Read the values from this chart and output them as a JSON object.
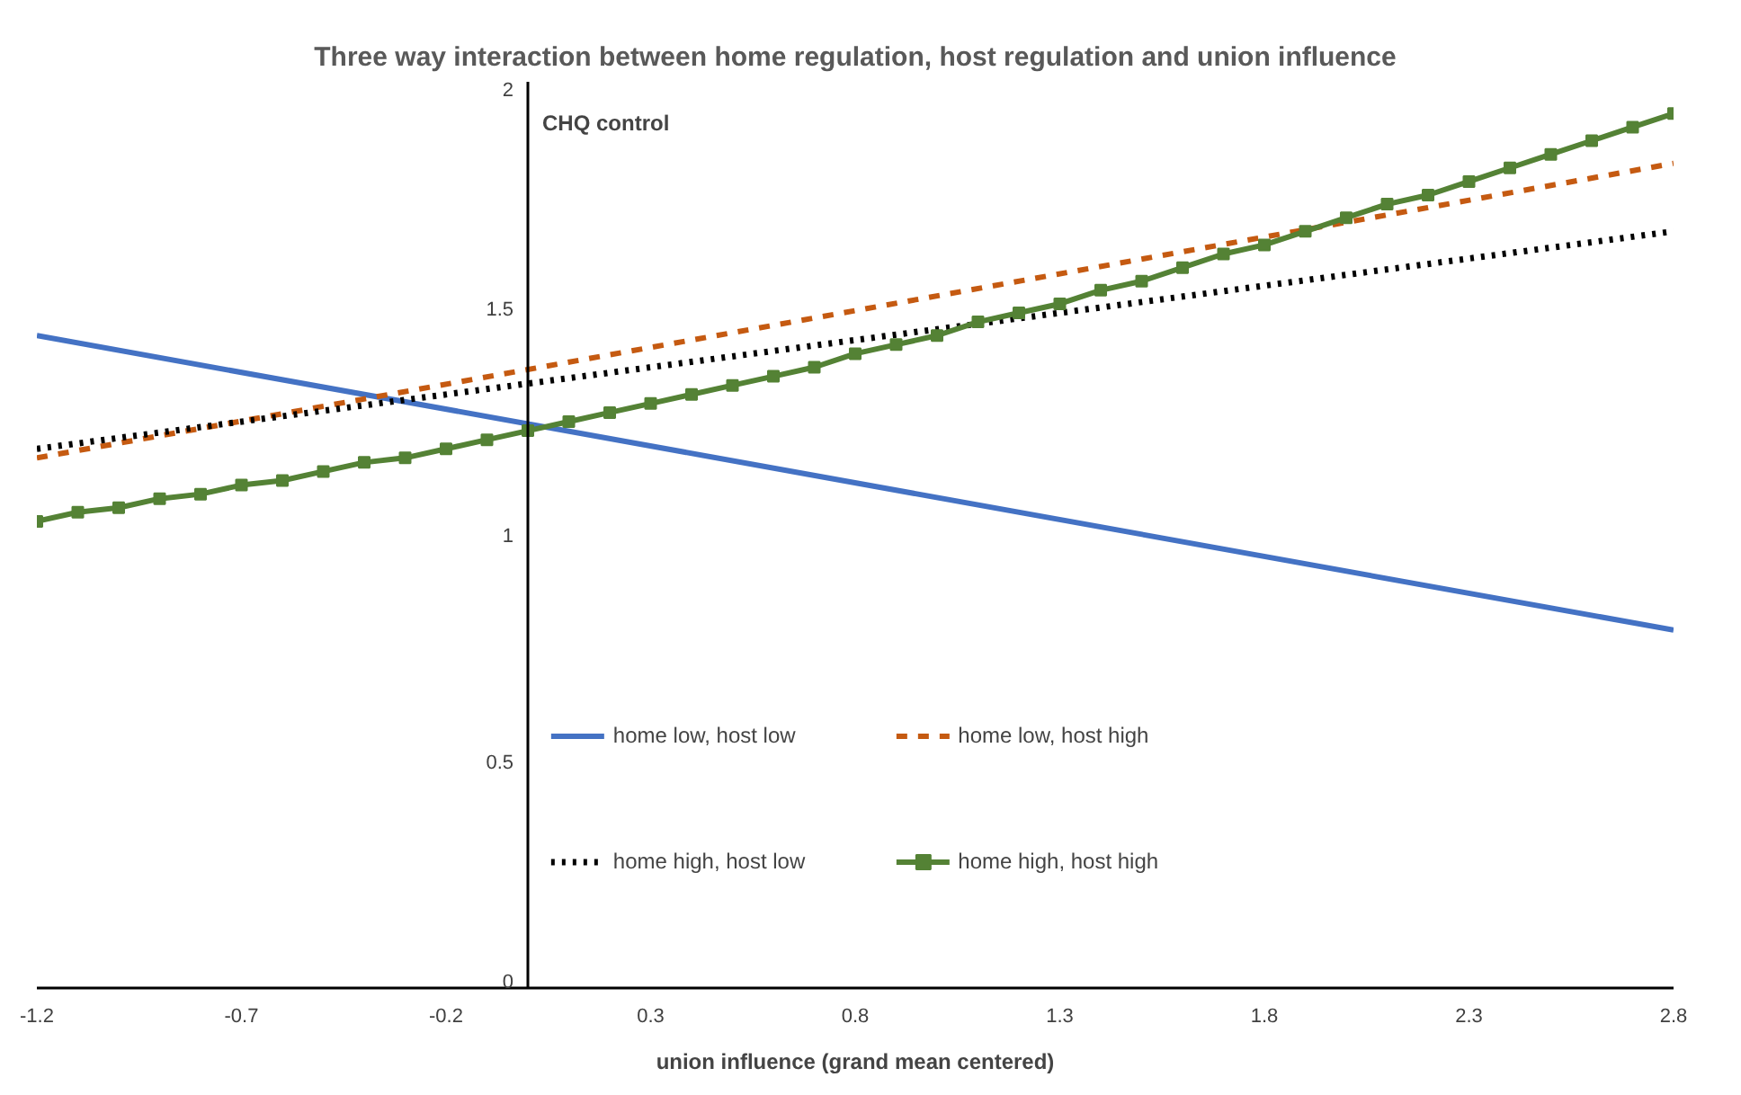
{
  "chart_data": {
    "type": "line",
    "title": "Three way interaction between home regulation, host regulation and union influence",
    "xlabel": "union influence (grand mean centered)",
    "ylabel": "CHQ control",
    "xlim": [
      -1.2,
      2.8
    ],
    "ylim": [
      0,
      2
    ],
    "xticks": [
      -1.2,
      -0.7,
      -0.2,
      0.3,
      0.8,
      1.3,
      1.8,
      2.3,
      2.8
    ],
    "yticks": [
      0,
      0.5,
      1,
      1.5,
      2
    ],
    "grid": false,
    "legend": "bottom",
    "series": [
      {
        "name": "home low, host low",
        "color": "#4472c4",
        "line_style": "solid",
        "marker": "none",
        "x": [
          -1.2,
          2.8
        ],
        "values": [
          1.44,
          0.79
        ]
      },
      {
        "name": "home low, host high",
        "color": "#c55a11",
        "line_style": "dashed",
        "marker": "none",
        "x": [
          -1.2,
          2.8
        ],
        "values": [
          1.17,
          1.82
        ]
      },
      {
        "name": "home high, host low",
        "color": "#000000",
        "line_style": "dotted",
        "marker": "none",
        "x": [
          -1.2,
          2.8
        ],
        "values": [
          1.19,
          1.67
        ]
      },
      {
        "name": "home high, host high",
        "color": "#548235",
        "line_style": "solid",
        "marker": "square",
        "x": [
          -1.2,
          -1.1,
          -1.0,
          -0.9,
          -0.8,
          -0.7,
          -0.6,
          -0.5,
          -0.4,
          -0.3,
          -0.2,
          -0.1,
          0,
          0.1,
          0.2,
          0.3,
          0.4,
          0.5,
          0.6,
          0.7,
          0.8,
          0.9,
          1.0,
          1.1,
          1.2,
          1.3,
          1.4,
          1.5,
          1.6,
          1.7,
          1.8,
          1.9,
          2.0,
          2.1,
          2.2,
          2.3,
          2.4,
          2.5,
          2.6,
          2.7,
          2.8
        ],
        "values": [
          1.03,
          1.05,
          1.06,
          1.08,
          1.09,
          1.11,
          1.12,
          1.14,
          1.16,
          1.17,
          1.19,
          1.21,
          1.23,
          1.25,
          1.27,
          1.29,
          1.31,
          1.33,
          1.35,
          1.37,
          1.4,
          1.42,
          1.44,
          1.47,
          1.49,
          1.51,
          1.54,
          1.56,
          1.59,
          1.62,
          1.64,
          1.67,
          1.7,
          1.73,
          1.75,
          1.78,
          1.81,
          1.84,
          1.87,
          1.9,
          1.93
        ]
      }
    ]
  }
}
